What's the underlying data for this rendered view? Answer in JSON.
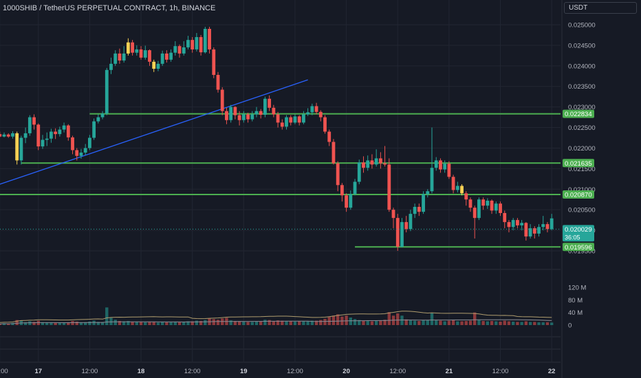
{
  "header": {
    "title": "1000SHIB / TetherUS PERPETUAL CONTRACT, 1h, BINANCE",
    "currency": "USDT"
  },
  "colors": {
    "background": "#161a25",
    "grid": "#222632",
    "up": "#26a69a",
    "down": "#ef5350",
    "highlight": "#f7d154",
    "level_line": "#4caf50",
    "trend_line": "#2962ff",
    "volume_ma": "#b09d6e",
    "volume_ma2": "#8a8d96"
  },
  "chart_data": {
    "type": "candlestick",
    "title": "1000SHIB / TetherUS PERPETUAL CONTRACT, 1h, BINANCE",
    "price_axis": {
      "range": [
        0.01935,
        0.0254
      ],
      "ticks": [
        "0.025000",
        "0.024500",
        "0.024000",
        "0.023500",
        "0.023000",
        "0.022500",
        "0.022000",
        "0.021500",
        "0.021000",
        "0.020500",
        "0.020000",
        "0.019500"
      ]
    },
    "time_axis": {
      "ticks": [
        {
          "label": "12:00",
          "x_index": -1
        },
        {
          "label": "17",
          "x_index": 8
        },
        {
          "label": "12:00",
          "x_index": 20
        },
        {
          "label": "18",
          "x_index": 32
        },
        {
          "label": "12:00",
          "x_index": 44
        },
        {
          "label": "19",
          "x_index": 56
        },
        {
          "label": "12:00",
          "x_index": 68
        },
        {
          "label": "20",
          "x_index": 80
        },
        {
          "label": "12:00",
          "x_index": 92
        },
        {
          "label": "21",
          "x_index": 104
        },
        {
          "label": "12:00",
          "x_index": 116
        },
        {
          "label": "22",
          "x_index": 128
        }
      ]
    },
    "horizontal_levels": [
      {
        "price": 0.022834,
        "label": "0.022834",
        "x_start_index": 20
      },
      {
        "price": 0.021635,
        "label": "0.021635",
        "x_start_index": 4
      },
      {
        "price": 0.02087,
        "label": "0.020870",
        "x_start_index": -999
      },
      {
        "price": 0.019596,
        "label": "0.019596",
        "x_start_index": 82
      }
    ],
    "current_price": {
      "label": "0.020029",
      "countdown": "36:05",
      "price": 0.020029
    },
    "trend_line": {
      "from": {
        "index": -3,
        "price": 0.02105
      },
      "to": {
        "index": 71,
        "price": 0.02366
      }
    },
    "volume_axis": {
      "range": [
        0,
        130
      ],
      "ticks": [
        "120 M",
        "80 M",
        "40 M",
        "0"
      ]
    },
    "candles_compact": "-3,0.02235,0.02237,0.02240,0.02230,5;-2,0.02237,0.02235,0.02242,0.02232,4;-1,0.02234,0.02228,0.02240,0.02226,4;0,0.02228,0.02233,0.02238,0.02226,6;1,0.02233,0.02228,0.02236,0.02225,5;2,0.02228,0.02236,0.02241,0.02223,7;3,0.02236,0.02170,0.02240,0.02160,16;4,0.02170,0.02225,0.02230,0.02160,14;5,0.02225,0.02236,0.02250,0.02212,9;6,0.02236,0.02275,0.02280,0.02230,12;7,0.02275,0.02257,0.02282,0.02245,10;8,0.02257,0.02204,0.02260,0.02195,14;9,0.02204,0.02220,0.02232,0.02198,9;10,0.02220,0.02223,0.02238,0.02205,8;11,0.02223,0.02240,0.02247,0.02213,8;12,0.02240,0.02234,0.02248,0.02222,7;13,0.02234,0.02245,0.02252,0.02228,7;14,0.02245,0.02255,0.02262,0.02238,8;15,0.02255,0.02226,0.02258,0.02218,9;16,0.02226,0.02195,0.02230,0.02185,13;17,0.02195,0.02181,0.02200,0.02170,11;18,0.02181,0.02189,0.02198,0.02174,8;19,0.02189,0.02200,0.02210,0.02183,9;20,0.02200,0.02225,0.02232,0.02195,11;21,0.02225,0.02265,0.02272,0.02220,14;22,0.02265,0.02275,0.02282,0.02260,10;23,0.02275,0.02284,0.02290,0.02270,9;24,0.02284,0.02390,0.02395,0.02280,56;25,0.02390,0.02405,0.02420,0.02380,23;26,0.02405,0.02430,0.02438,0.02400,17;27,0.02430,0.02413,0.02442,0.02405,13;28,0.02413,0.02430,0.02448,0.02408,12;29,0.02430,0.02457,0.02467,0.02425,13;30,0.02457,0.02432,0.02463,0.02425,11;31,0.02432,0.02440,0.02450,0.02425,10;32,0.02440,0.02420,0.02448,0.02415,10;33,0.02420,0.02438,0.02449,0.02415,9;34,0.02438,0.02410,0.02440,0.02400,11;35,0.02410,0.02393,0.02415,0.02385,10;36,0.02393,0.02405,0.02412,0.02387,8;37,0.02405,0.02430,0.02437,0.02400,10;38,0.02430,0.02415,0.02438,0.02408,9;39,0.02415,0.02432,0.02440,0.02410,9;40,0.02432,0.02448,0.02460,0.02425,10;41,0.02448,0.02430,0.02452,0.02420,9;42,0.02430,0.02445,0.02460,0.02425,10;43,0.02445,0.02463,0.02473,0.02440,12;44,0.02463,0.02440,0.02470,0.02432,12;45,0.02440,0.02470,0.02480,0.02435,14;46,0.02470,0.02433,0.02475,0.02425,13;47,0.02433,0.02490,0.02495,0.02430,16;48,0.02490,0.02440,0.02495,0.02430,21;49,0.02440,0.02378,0.02445,0.02370,19;50,0.02378,0.02342,0.02385,0.02335,17;51,0.02342,0.02290,0.02348,0.02280,21;52,0.02290,0.02268,0.02298,0.02258,23;53,0.02268,0.02300,0.02305,0.02262,15;54,0.02300,0.02280,0.02302,0.02270,13;55,0.02280,0.02268,0.02290,0.02255,12;56,0.02268,0.02282,0.02290,0.02262,11;57,0.02282,0.02270,0.02286,0.02262,10;58,0.02270,0.02282,0.02290,0.02265,10;59,0.02282,0.02290,0.02300,0.02275,11;60,0.02290,0.02281,0.02295,0.02272,11;61,0.02281,0.02320,0.02325,0.02275,17;62,0.02320,0.02298,0.02328,0.02290,16;63,0.02298,0.02282,0.02305,0.02275,13;64,0.02282,0.02262,0.02288,0.02250,15;65,0.02262,0.02252,0.02270,0.02245,14;66,0.02252,0.02275,0.02280,0.02245,13;67,0.02275,0.02262,0.02280,0.02255,12;68,0.02262,0.02277,0.02282,0.02258,11;69,0.02277,0.02262,0.02280,0.02255,12;70,0.02262,0.02282,0.02290,0.02258,12;71,0.02282,0.02287,0.02297,0.02278,13;72,0.02287,0.02302,0.02308,0.02280,14;73,0.02302,0.02288,0.02310,0.02282,14;74,0.02288,0.02275,0.02292,0.02265,16;75,0.02275,0.02240,0.02280,0.02235,20;76,0.02240,0.02215,0.02245,0.02205,26;77,0.02215,0.02163,0.02222,0.02160,30;78,0.02163,0.02110,0.02168,0.02095,34;79,0.02110,0.02085,0.02115,0.02070,27;80,0.02085,0.02055,0.02090,0.02045,30;81,0.02055,0.02088,0.02097,0.02050,24;82,0.02088,0.02118,0.02125,0.02085,19;83,0.02118,0.02165,0.02172,0.02112,16;84,0.02165,0.02152,0.02180,0.02140,14;85,0.02152,0.02170,0.02182,0.02145,13;86,0.02170,0.02160,0.02185,0.02150,12;87,0.02160,0.02175,0.02197,0.02155,13;88,0.02175,0.02163,0.02190,0.02150,14;89,0.02163,0.02160,0.02205,0.02155,17;90,0.02160,0.02050,0.02175,0.02045,41;91,0.02050,0.02030,0.02055,0.02005,30;92,0.02030,0.01960,0.02040,0.01950,37;93,0.01960,0.02020,0.02030,0.01958,30;94,0.02020,0.02003,0.02035,0.01995,18;95,0.02003,0.02040,0.02050,0.01998,15;96,0.02040,0.02057,0.02065,0.02030,14;97,0.02057,0.02045,0.02065,0.02035,13;98,0.02045,0.02088,0.02095,0.02040,16;99,0.02088,0.02095,0.02100,0.02080,16;100,0.02095,0.02152,0.02250,0.02090,38;101,0.02152,0.02170,0.02178,0.02145,15;102,0.02170,0.02148,0.02175,0.02140,14;103,0.02148,0.02162,0.02170,0.02140,12;104,0.02162,0.02130,0.02168,0.02125,14;105,0.02130,0.02098,0.02135,0.02090,16;106,0.02098,0.02108,0.02118,0.02092,12;107,0.02108,0.02090,0.02112,0.02085,12;108,0.02090,0.02075,0.02095,0.02060,13;109,0.02075,0.02055,0.02080,0.02045,14;110,0.02055,0.02030,0.02060,0.01980,40;111,0.02030,0.02075,0.02080,0.02025,16;112,0.02075,0.02060,0.02080,0.02050,13;113,0.02060,0.02072,0.02078,0.02052,12;114,0.02072,0.02048,0.02075,0.02040,13;115,0.02048,0.02065,0.02070,0.02040,12;116,0.02065,0.02042,0.02070,0.02035,11;117,0.02042,0.02020,0.02048,0.02005,14;118,0.02020,0.02008,0.02025,0.01995,12;119,0.02008,0.02025,0.02030,0.02000,11;120,0.02025,0.02012,0.02030,0.02005,10;121,0.02012,0.02018,0.02025,0.02000,10;122,0.02018,0.01985,0.02020,0.01975,12;123,0.01985,0.02005,0.02015,0.01980,10;124,0.02005,0.01992,0.02010,0.01980,10;125,0.01992,0.02008,0.02015,0.01985,9;126,0.02008,0.02015,0.02035,0.02000,9;127,0.02015,0.02003,0.02020,0.01995,9;128,0.02003,0.02029,0.02040,0.02000,8",
    "highlight_candles": [
      3,
      29,
      35,
      107
    ]
  }
}
